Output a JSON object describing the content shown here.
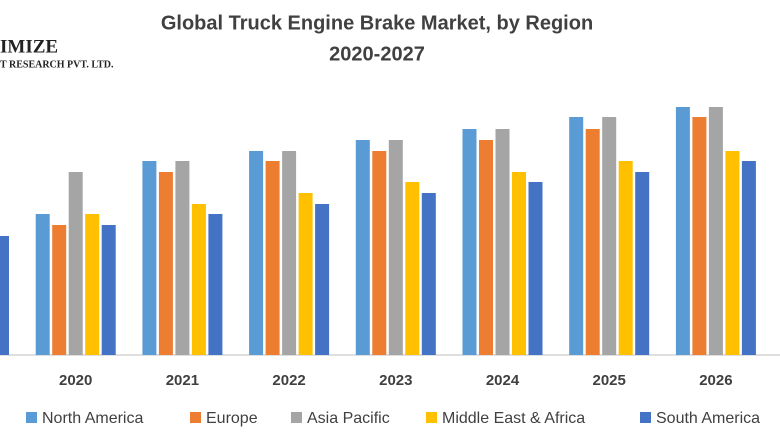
{
  "logo": {
    "line1": "IMIZE",
    "line2": "T RESEARCH PVT. LTD."
  },
  "chart_data": {
    "type": "bar",
    "title": "Global Truck Engine Brake Market, by Region",
    "subtitle": "2020-2027",
    "categories": [
      null,
      "2020",
      "2021",
      "2022",
      "2023",
      "2024",
      "2025",
      "2026"
    ],
    "series": [
      {
        "name": "North America",
        "color": "#5b9bd5",
        "values": [
          null,
          141,
          194,
          204,
          215,
          226,
          238,
          248
        ]
      },
      {
        "name": "Europe",
        "color": "#ed7d31",
        "values": [
          null,
          130,
          183,
          194,
          204,
          215,
          226,
          238
        ]
      },
      {
        "name": "Asia Pacific",
        "color": "#a5a5a5",
        "values": [
          null,
          183,
          194,
          204,
          215,
          226,
          238,
          248
        ]
      },
      {
        "name": "Middle East & Africa",
        "color": "#ffc000",
        "values": [
          null,
          141,
          151,
          162,
          173,
          183,
          194,
          204
        ]
      },
      {
        "name": "South America",
        "color": "#4472c4",
        "values": [
          119,
          130,
          141,
          151,
          162,
          173,
          183,
          194
        ]
      }
    ],
    "ylim": [
      0,
      260
    ]
  }
}
